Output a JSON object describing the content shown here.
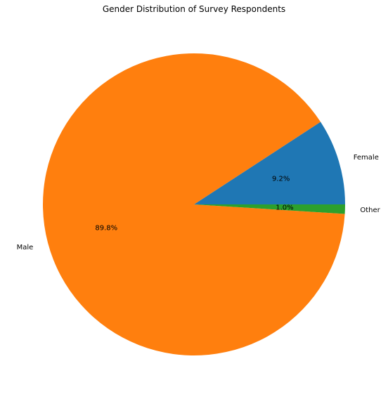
{
  "chart_data": {
    "type": "pie",
    "title": "Gender Distribution of Survey Respondents",
    "slices": [
      {
        "label": "Female",
        "percent_label": "9.2%",
        "value": 9.2,
        "color": "#1f77b4"
      },
      {
        "label": "Male",
        "percent_label": "89.8%",
        "value": 89.8,
        "color": "#ff7f0e"
      },
      {
        "label": "Other",
        "percent_label": "1.0%",
        "value": 1.0,
        "color": "#2ca02c"
      }
    ],
    "start_angle_deg": 0,
    "direction": "counterclockwise",
    "legend": "none"
  }
}
